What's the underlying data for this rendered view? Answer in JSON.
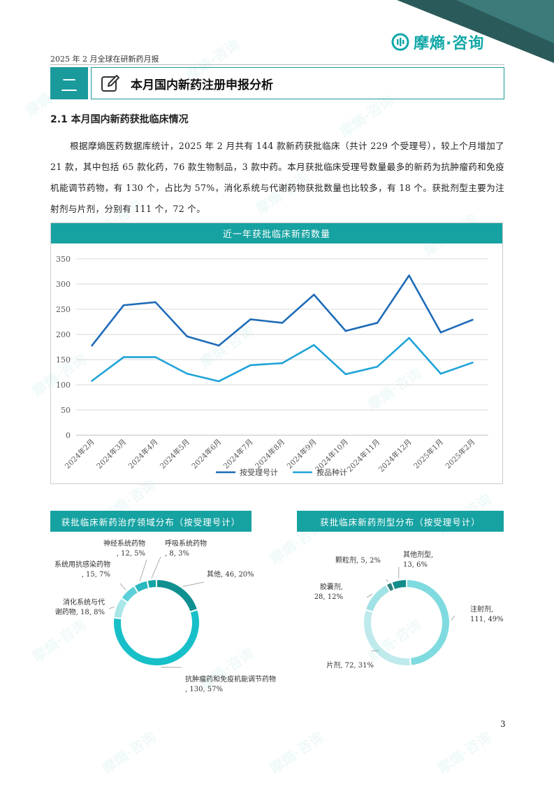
{
  "header": {
    "doc_title": "2025 年 2 月全球在研新药月报",
    "logo_text": "摩熵·咨询",
    "watermark_text": "摩熵·咨询"
  },
  "section": {
    "number": "二",
    "title": "本月国内新药注册申报分析"
  },
  "subsection": {
    "title": "2.1 本月国内新药获批临床情况"
  },
  "body": {
    "paragraph": "根据摩熵医药数据库统计，2025 年 2 月共有 144 款新药获批临床（共计 229 个受理号），较上个月增加了 21 款，其中包括 65 款化药，76 款生物制品，3 款中药。本月获批临床受理号数量最多的新药为抗肿瘤药和免疫机能调节药物，有 130 个，占比为 57%，消化系统与代谢药物获批数量也比较多，有 18 个。获批剂型主要为注射剂与片剂，分别有 111 个，72 个。"
  },
  "page_number": "3",
  "chart_data": [
    {
      "type": "line",
      "title": "近一年获批临床新药数量",
      "x": [
        "2024年2月",
        "2024年3月",
        "2024年4月",
        "2024年5月",
        "2024年6月",
        "2024年7月",
        "2024年8月",
        "2024年9月",
        "2024年10月",
        "2024年11月",
        "2024年12月",
        "2025年1月",
        "2025年2月"
      ],
      "y_ticks": [
        "0",
        "50",
        "100",
        "150",
        "200",
        "250",
        "300",
        "350"
      ],
      "ylim": [
        0,
        350
      ],
      "grid": true,
      "legend_position": "bottom",
      "series": [
        {
          "name": "按受理号计",
          "color": "#1e6bb8",
          "values": [
            178,
            258,
            264,
            196,
            178,
            230,
            223,
            279,
            207,
            223,
            317,
            204,
            229
          ]
        },
        {
          "name": "按品种计",
          "color": "#1fa3d8",
          "values": [
            108,
            155,
            155,
            122,
            107,
            139,
            143,
            179,
            121,
            136,
            193,
            122,
            144
          ]
        }
      ]
    },
    {
      "type": "pie",
      "title": "获批临床新药治疗领域分布（按受理号计）",
      "slices": [
        {
          "label": "其他, 46, 20%",
          "value": 46,
          "color": "#0f8f8f"
        },
        {
          "label": "抗肿瘤药和免疫机能调节药物, 130, 57%",
          "value": 130,
          "color": "#17c0c8"
        },
        {
          "label": "消化系统与代谢药物, 18, 8%",
          "value": 18,
          "color": "#a8e6e8"
        },
        {
          "label": "系统用抗感染药物, 15, 7%",
          "value": 15,
          "color": "#5cd0d8"
        },
        {
          "label": "神经系统药物, 12, 5%",
          "value": 12,
          "color": "#2ab8c0"
        },
        {
          "label": "呼吸系统药物, 8, 3%",
          "value": 8,
          "color": "#13a4a4"
        }
      ]
    },
    {
      "type": "pie",
      "title": "获批临床新药剂型分布（按受理号计）",
      "slices": [
        {
          "label": "注射剂, 111, 49%",
          "value": 111,
          "color": "#7fdbe0"
        },
        {
          "label": "片剂, 72, 31%",
          "value": 72,
          "color": "#bfeaec"
        },
        {
          "label": "胶囊剂, 28, 12%",
          "value": 28,
          "color": "#a0e2e6"
        },
        {
          "label": "颗粒剂, 5, 2%",
          "value": 5,
          "color": "#2f7f7f"
        },
        {
          "label": "其他剂型, 13, 6%",
          "value": 13,
          "color": "#138c8c"
        }
      ]
    }
  ]
}
